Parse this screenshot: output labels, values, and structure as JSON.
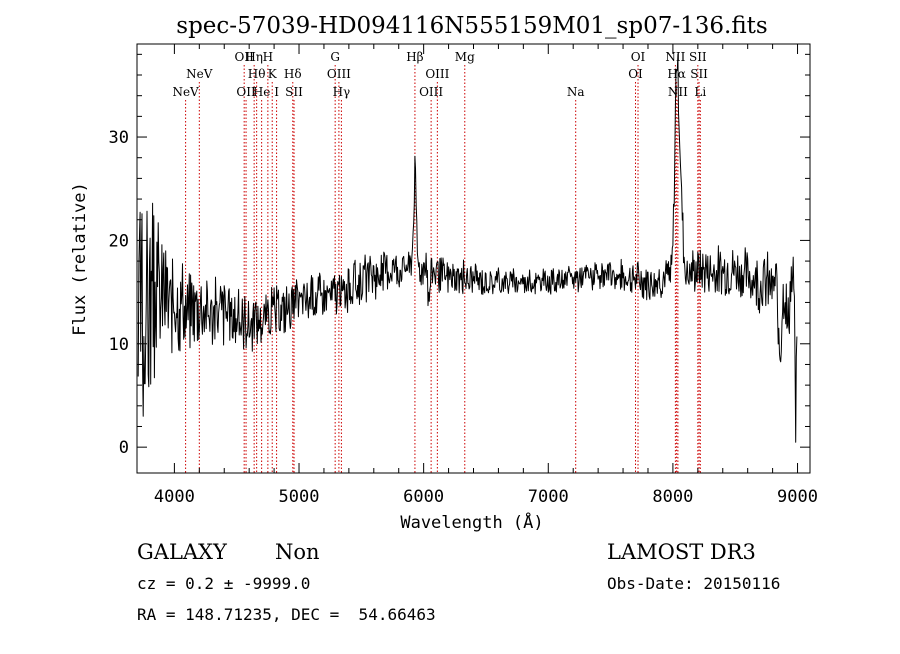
{
  "chart_data": {
    "type": "line",
    "title": "spec-57039-HD094116N555159M01_sp07-136.fits",
    "xlabel": "Wavelength (Å)",
    "ylabel": "Flux (relative)",
    "xlim": [
      3700,
      9100
    ],
    "ylim": [
      -2.5,
      39
    ],
    "xticks": [
      4000,
      5000,
      6000,
      7000,
      8000,
      9000
    ],
    "yticks": [
      0,
      10,
      20,
      30
    ],
    "grid": false,
    "line_color": "#000000",
    "marker_color": "#cc0000",
    "lines": [
      {
        "name": "NeV",
        "wave": 4090,
        "row": 3
      },
      {
        "name": "NeV",
        "wave": 4200,
        "row": 2
      },
      {
        "name": "OII",
        "wave": 4560,
        "row": 1
      },
      {
        "name": "OII",
        "wave": 4575,
        "row": 3
      },
      {
        "name": "Hη",
        "wave": 4640,
        "row": 1
      },
      {
        "name": "Hθ",
        "wave": 4660,
        "row": 2
      },
      {
        "name": "He",
        "wave": 4700,
        "row": 3
      },
      {
        "name": "H",
        "wave": 4750,
        "row": 1
      },
      {
        "name": "K",
        "wave": 4785,
        "row": 2
      },
      {
        "name": "I",
        "wave": 4820,
        "row": 3
      },
      {
        "name": "Hδ",
        "wave": 4950,
        "row": 2
      },
      {
        "name": "SII",
        "wave": 4960,
        "row": 3
      },
      {
        "name": "G",
        "wave": 5290,
        "row": 1
      },
      {
        "name": "OIII",
        "wave": 5320,
        "row": 2
      },
      {
        "name": "Hγ",
        "wave": 5340,
        "row": 3
      },
      {
        "name": "Hβ",
        "wave": 5930,
        "row": 1
      },
      {
        "name": "OIII",
        "wave": 6060,
        "row": 3
      },
      {
        "name": "OIII",
        "wave": 6110,
        "row": 2
      },
      {
        "name": "Mg",
        "wave": 6330,
        "row": 1
      },
      {
        "name": "Na",
        "wave": 7220,
        "row": 3
      },
      {
        "name": "OI",
        "wave": 7720,
        "row": 1
      },
      {
        "name": "OI",
        "wave": 7700,
        "row": 2
      },
      {
        "name": "NII",
        "wave": 8020,
        "row": 1
      },
      {
        "name": "Hα",
        "wave": 8030,
        "row": 2
      },
      {
        "name": "NII",
        "wave": 8040,
        "row": 3
      },
      {
        "name": "SII",
        "wave": 8200,
        "row": 1
      },
      {
        "name": "SII",
        "wave": 8210,
        "row": 2
      },
      {
        "name": "Li",
        "wave": 8220,
        "row": 3
      }
    ],
    "spectrum": {
      "x_start": 3710,
      "x_step": 10,
      "trend": [
        [
          3710,
          12
        ],
        [
          3800,
          14
        ],
        [
          3900,
          15
        ],
        [
          4000,
          14
        ],
        [
          4200,
          13.5
        ],
        [
          4500,
          12.5
        ],
        [
          4600,
          12
        ],
        [
          4800,
          13
        ],
        [
          5000,
          14
        ],
        [
          5300,
          15
        ],
        [
          5500,
          16
        ],
        [
          5700,
          17
        ],
        [
          5900,
          17.5
        ],
        [
          6000,
          17
        ],
        [
          6200,
          16.5
        ],
        [
          6500,
          16
        ],
        [
          7000,
          16
        ],
        [
          7300,
          16.5
        ],
        [
          7600,
          16.5
        ],
        [
          7800,
          16
        ],
        [
          8000,
          16.5
        ],
        [
          8200,
          17
        ],
        [
          8500,
          17
        ],
        [
          8800,
          15.5
        ],
        [
          9000,
          15.5
        ]
      ],
      "noise": [
        [
          3710,
          12
        ],
        [
          3800,
          10
        ],
        [
          3900,
          6
        ],
        [
          4000,
          4
        ],
        [
          4300,
          3
        ],
        [
          4600,
          2.5
        ],
        [
          5000,
          2
        ],
        [
          5500,
          2
        ],
        [
          6000,
          1.6
        ],
        [
          6500,
          1.3
        ],
        [
          7000,
          1
        ],
        [
          7500,
          1.3
        ],
        [
          8000,
          1.8
        ],
        [
          8500,
          2.2
        ],
        [
          9000,
          3
        ]
      ],
      "features": [
        {
          "wave": 5930,
          "height": 9,
          "width": 15
        },
        {
          "wave": 6040,
          "height": -5,
          "width": 15
        },
        {
          "wave": 6030,
          "height": 3,
          "width": 25
        },
        {
          "wave": 8030,
          "height": 19,
          "width": 22
        },
        {
          "wave": 8060,
          "height": 8,
          "width": 25
        },
        {
          "wave": 8860,
          "height": -6,
          "width": 15
        },
        {
          "wave": 8920,
          "height": -4,
          "width": 15
        },
        {
          "wave": 8985,
          "height": -13,
          "width": 8
        }
      ]
    }
  },
  "footer": {
    "class_label": "GALAXY",
    "subclass": "Non",
    "survey": "LAMOST DR3",
    "cz": "cz = 0.2 ± -9999.0",
    "obs_date": "Obs-Date: 20150116",
    "radec": "RA = 148.71235, DEC =  54.66463"
  }
}
